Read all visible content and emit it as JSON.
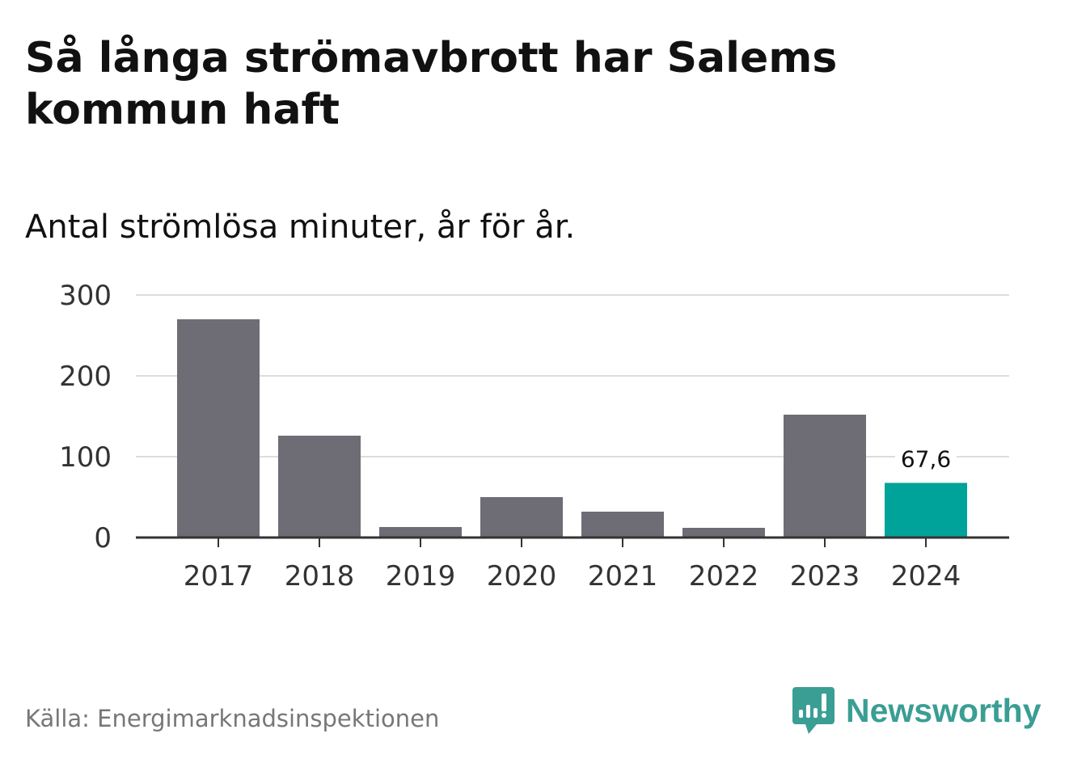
{
  "title": "Så långa strömavbrott har Salems kommun haft",
  "subtitle": "Antal strömlösa minuter, år för år.",
  "source": "Källa: Energimarknadsinspektionen",
  "logo_text": "Newsworthy",
  "colors": {
    "bar": "#6e6d75",
    "highlight": "#00a399",
    "grid": "#dddddd",
    "axis": "#333333",
    "logo": "#3a9e94"
  },
  "chart_data": {
    "type": "bar",
    "title": "Så långa strömavbrott har Salems kommun haft",
    "subtitle": "Antal strömlösa minuter, år för år.",
    "xlabel": "",
    "ylabel": "",
    "categories": [
      "2017",
      "2018",
      "2019",
      "2020",
      "2021",
      "2022",
      "2023",
      "2024"
    ],
    "values": [
      270,
      126,
      13,
      50,
      32,
      12,
      152,
      67.6
    ],
    "highlight_index": 7,
    "data_labels": [
      {
        "index": 7,
        "text": "67,6"
      }
    ],
    "ylim": [
      0,
      300
    ],
    "yticks": [
      0,
      100,
      200,
      300
    ],
    "ytick_labels": [
      "0",
      "100",
      "200",
      "300"
    ],
    "grid": true
  }
}
